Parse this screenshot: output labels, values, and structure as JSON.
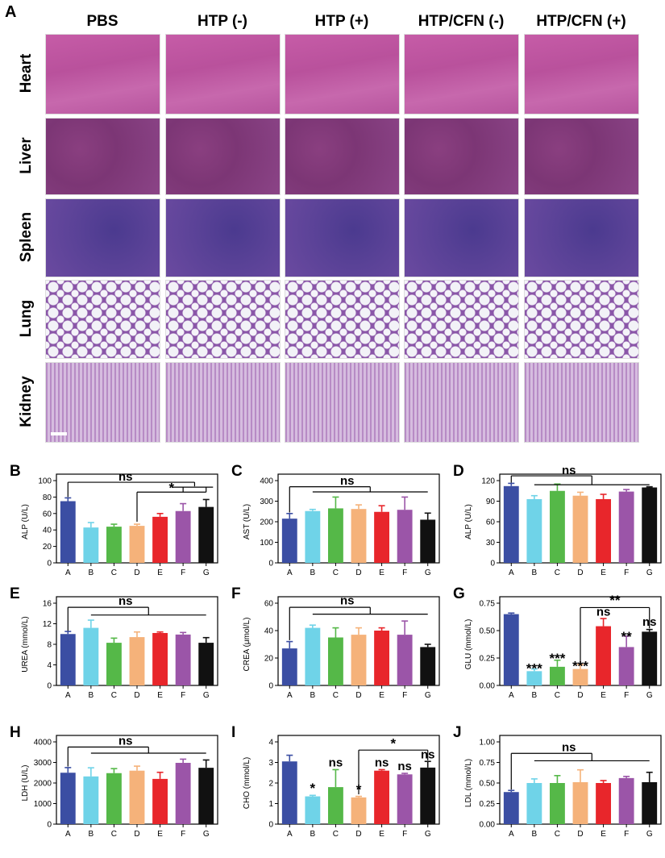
{
  "panel_a": {
    "letter": "A",
    "columns": [
      "PBS",
      "HTP (-)",
      "HTP (+)",
      "HTP/CFN (-)",
      "HTP/CFN (+)"
    ],
    "rows": [
      "Heart",
      "Liver",
      "Spleen",
      "Lung",
      "Kidney"
    ]
  },
  "chart_data": [
    {
      "panel": "B",
      "type": "bar",
      "categories": [
        "A",
        "B",
        "C",
        "D",
        "E",
        "F",
        "G"
      ],
      "values": [
        75,
        43,
        44,
        45,
        56,
        63,
        68
      ],
      "errors": [
        4,
        6,
        3,
        2,
        4,
        9,
        9
      ],
      "ylabel": "ALP (U/L)",
      "ylim": [
        0,
        100
      ],
      "yticks": [
        0,
        20,
        40,
        60,
        80,
        100
      ],
      "annotations": [
        {
          "text": "ns"
        },
        {
          "text": "*"
        }
      ]
    },
    {
      "panel": "C",
      "type": "bar",
      "categories": [
        "A",
        "B",
        "C",
        "D",
        "E",
        "F",
        "G"
      ],
      "values": [
        215,
        252,
        265,
        262,
        248,
        258,
        210
      ],
      "errors": [
        25,
        8,
        55,
        20,
        30,
        62,
        32
      ],
      "ylabel": "AST (U/L)",
      "ylim": [
        0,
        400
      ],
      "yticks": [
        0,
        100,
        200,
        300,
        400
      ],
      "annotations": [
        {
          "text": "ns"
        }
      ]
    },
    {
      "panel": "D",
      "type": "bar",
      "categories": [
        "A",
        "B",
        "C",
        "D",
        "E",
        "F",
        "G"
      ],
      "values": [
        112,
        93,
        105,
        98,
        93,
        104,
        110
      ],
      "errors": [
        4,
        5,
        10,
        5,
        7,
        3,
        1
      ],
      "ylabel": "ALP (U/L)",
      "ylim": [
        0,
        120
      ],
      "yticks": [
        0,
        30,
        60,
        90,
        120
      ],
      "annotations": [
        {
          "text": "ns"
        }
      ]
    },
    {
      "panel": "E",
      "type": "bar",
      "categories": [
        "A",
        "B",
        "C",
        "D",
        "E",
        "F",
        "G"
      ],
      "values": [
        10,
        11.2,
        8.3,
        9.4,
        10.2,
        9.9,
        8.3
      ],
      "errors": [
        0.5,
        1.5,
        0.9,
        1.0,
        0.2,
        0.4,
        1.0
      ],
      "ylabel": "UREA (mmol/L)",
      "ylim": [
        0,
        16
      ],
      "yticks": [
        0,
        4,
        8,
        12,
        16
      ],
      "annotations": [
        {
          "text": "ns"
        }
      ]
    },
    {
      "panel": "F",
      "type": "bar",
      "categories": [
        "A",
        "B",
        "C",
        "D",
        "E",
        "F",
        "G"
      ],
      "values": [
        27,
        42,
        35,
        37,
        40,
        37,
        28
      ],
      "errors": [
        5,
        2,
        7,
        5,
        2,
        10,
        2
      ],
      "ylabel": "CREA (μmol/L)",
      "ylim": [
        0,
        60
      ],
      "yticks": [
        0,
        20,
        40,
        60
      ],
      "annotations": [
        {
          "text": "ns"
        }
      ]
    },
    {
      "panel": "G",
      "type": "bar",
      "categories": [
        "A",
        "B",
        "C",
        "D",
        "E",
        "F",
        "G"
      ],
      "values": [
        0.65,
        0.13,
        0.17,
        0.15,
        0.54,
        0.35,
        0.49
      ],
      "errors": [
        0.01,
        0.02,
        0.06,
        0.04,
        0.07,
        0.1,
        0.02
      ],
      "ylabel": "GLU (mmol/L)",
      "ylim": [
        0,
        0.75
      ],
      "yticks": [
        0.0,
        0.25,
        0.5,
        0.75
      ],
      "ytick_labels": [
        "0.00",
        "0.25",
        "0.50",
        "0.75"
      ],
      "annotations": [
        {
          "text": "***"
        },
        {
          "text": "***"
        },
        {
          "text": "***"
        },
        {
          "text": "ns"
        },
        {
          "text": "**"
        },
        {
          "text": "ns"
        },
        {
          "text": "**"
        }
      ]
    },
    {
      "panel": "H",
      "type": "bar",
      "categories": [
        "A",
        "B",
        "C",
        "D",
        "E",
        "F",
        "G"
      ],
      "values": [
        2500,
        2320,
        2480,
        2600,
        2200,
        2980,
        2740
      ],
      "errors": [
        250,
        420,
        220,
        220,
        320,
        180,
        380
      ],
      "ylabel": "LDH (U/L)",
      "ylim": [
        0,
        4000
      ],
      "yticks": [
        0,
        1000,
        2000,
        3000,
        4000
      ],
      "annotations": [
        {
          "text": "ns"
        }
      ]
    },
    {
      "panel": "I",
      "type": "bar",
      "categories": [
        "A",
        "B",
        "C",
        "D",
        "E",
        "F",
        "G"
      ],
      "values": [
        3.05,
        1.35,
        1.8,
        1.3,
        2.6,
        2.42,
        2.75
      ],
      "errors": [
        0.3,
        0.05,
        0.85,
        0.05,
        0.05,
        0.05,
        0.3
      ],
      "ylabel": "CHO (mmol/L)",
      "ylim": [
        0,
        4
      ],
      "yticks": [
        0,
        1,
        2,
        3,
        4
      ],
      "annotations": [
        {
          "text": "*"
        },
        {
          "text": "ns"
        },
        {
          "text": "*"
        },
        {
          "text": "ns"
        },
        {
          "text": "ns"
        },
        {
          "text": "ns"
        },
        {
          "text": "*"
        }
      ]
    },
    {
      "panel": "J",
      "type": "bar",
      "categories": [
        "A",
        "B",
        "C",
        "D",
        "E",
        "F",
        "G"
      ],
      "values": [
        0.39,
        0.5,
        0.5,
        0.51,
        0.5,
        0.56,
        0.51
      ],
      "errors": [
        0.02,
        0.05,
        0.09,
        0.15,
        0.03,
        0.02,
        0.12
      ],
      "ylabel": "LDL (mmol/L)",
      "ylim": [
        0,
        1
      ],
      "yticks": [
        0,
        0.25,
        0.5,
        0.75,
        1
      ],
      "ytick_labels": [
        "0.00",
        "0.25",
        "0.50",
        "0.75",
        "1.00"
      ],
      "annotations": [
        {
          "text": "ns"
        }
      ]
    }
  ],
  "bar_colors": [
    "#3b4ea3",
    "#6fd3e8",
    "#55b848",
    "#f5b27a",
    "#e8262b",
    "#9b55a8",
    "#111111"
  ]
}
